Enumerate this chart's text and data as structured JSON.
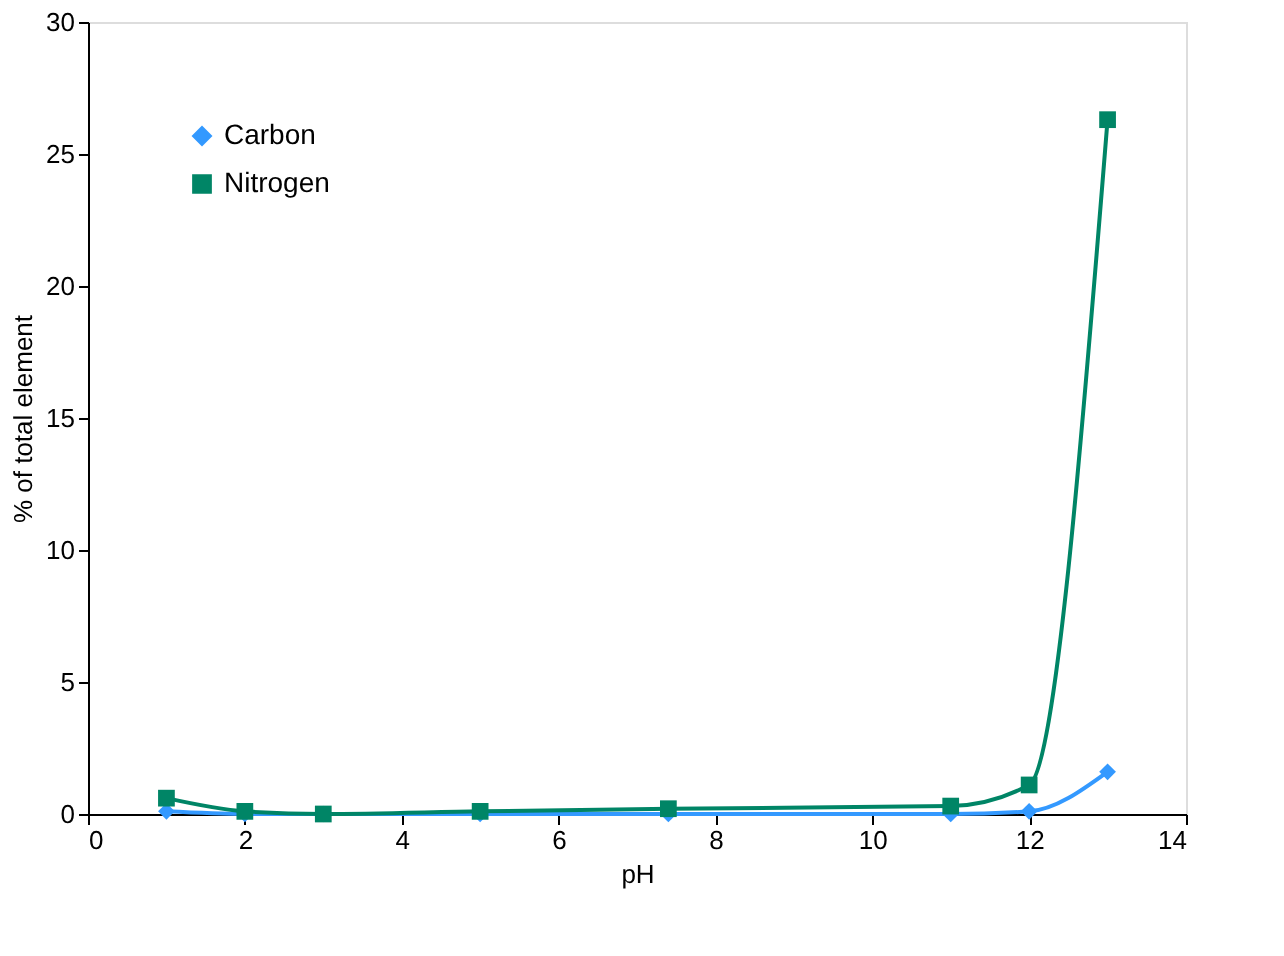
{
  "chart_data": {
    "type": "line",
    "xlabel": "pH",
    "ylabel": "% of total element",
    "xlim": [
      0,
      14
    ],
    "xticks": [
      0,
      2,
      4,
      6,
      8,
      10,
      12,
      14
    ],
    "ylim": [
      0,
      30
    ],
    "yticks": [
      0,
      5,
      10,
      15,
      20,
      25,
      30
    ],
    "grid": false,
    "legend": "top left",
    "series": [
      {
        "name": "Carbon",
        "color": "#3399ff",
        "marker": "diamond",
        "x": [
          1,
          2,
          3,
          5,
          7.4,
          11,
          12,
          13
        ],
        "values": [
          0.1,
          0,
          0,
          0,
          0,
          0,
          0.1,
          1.6
        ]
      },
      {
        "name": "Nitrogen",
        "color": "#008566",
        "marker": "square",
        "x": [
          1,
          2,
          3,
          5,
          7.4,
          11,
          12,
          13
        ],
        "values": [
          0.6,
          0.1,
          0,
          0.1,
          0.2,
          0.3,
          1.1,
          26.3
        ]
      }
    ]
  }
}
